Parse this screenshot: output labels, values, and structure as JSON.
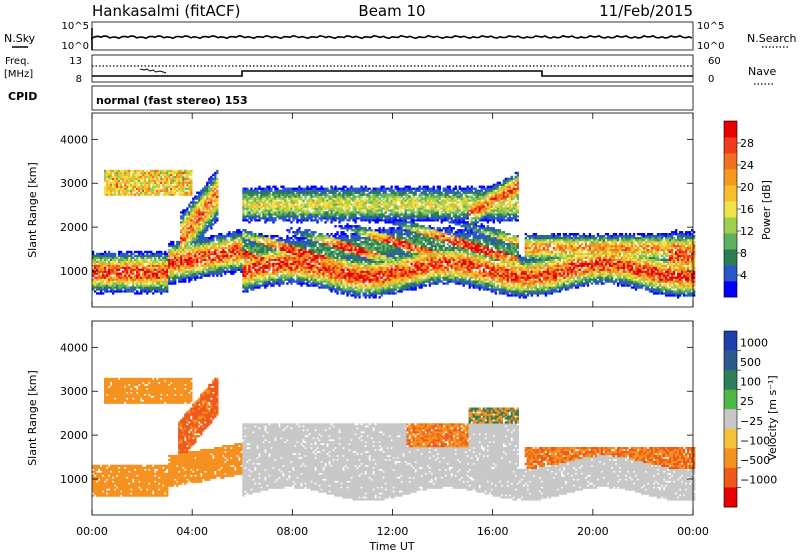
{
  "header": {
    "station": "Hankasalmi (fitACF)",
    "beam": "Beam 10",
    "date": "11/Feb/2015"
  },
  "strip_sky": {
    "left_label": "N.Sky",
    "right_label": "N.Search",
    "left_ticks": [
      "10^5",
      "10^0"
    ],
    "right_ticks": [
      "10^5",
      "10^0"
    ]
  },
  "strip_freq": {
    "left_label_1": "Freq.",
    "left_label_2": "[MHz]",
    "right_label": "Nave",
    "left_ticks": [
      "13",
      "8"
    ],
    "right_ticks": [
      "60",
      "0"
    ]
  },
  "cpid": {
    "label": "CPID",
    "mode_text": "normal (fast stereo) 153"
  },
  "chart_data": [
    {
      "type": "heatmap",
      "panel": "power",
      "ylabel": "Slant Range [km]",
      "xlabel": "",
      "ylim": [
        180,
        4600
      ],
      "yticks": [
        1000,
        2000,
        3000,
        4000
      ],
      "x_range_hours": [
        0,
        24
      ],
      "colorbar": {
        "label": "Power [dB]",
        "ticks": [
          "4",
          "8",
          "12",
          "16",
          "20",
          "24",
          "28"
        ],
        "colors": [
          "#0000ff",
          "#2956c8",
          "#2e7d52",
          "#5fb15f",
          "#a0cf4e",
          "#f3e34a",
          "#f7c02a",
          "#f59a1c",
          "#f27020",
          "#ee3c1c",
          "#e60000"
        ]
      }
    },
    {
      "type": "heatmap",
      "panel": "velocity",
      "ylabel": "Slant Range [km]",
      "xlabel": "Time UT",
      "ylim": [
        180,
        4600
      ],
      "yticks": [
        1000,
        2000,
        3000,
        4000
      ],
      "xticks": [
        "00:00",
        "04:00",
        "08:00",
        "12:00",
        "16:00",
        "20:00",
        "00:00"
      ],
      "colorbar": {
        "label": "Velocity [m s⁻¹]",
        "ticks": [
          "1000",
          "500",
          "100",
          "25",
          "−25",
          "−100",
          "−500",
          "−1000"
        ],
        "colors": [
          "#1f3faf",
          "#2c5a8c",
          "#2f7d5a",
          "#4db848",
          "#c8c8c8",
          "#f4c23a",
          "#f5911e",
          "#ef5a1c",
          "#e60000"
        ]
      }
    }
  ]
}
